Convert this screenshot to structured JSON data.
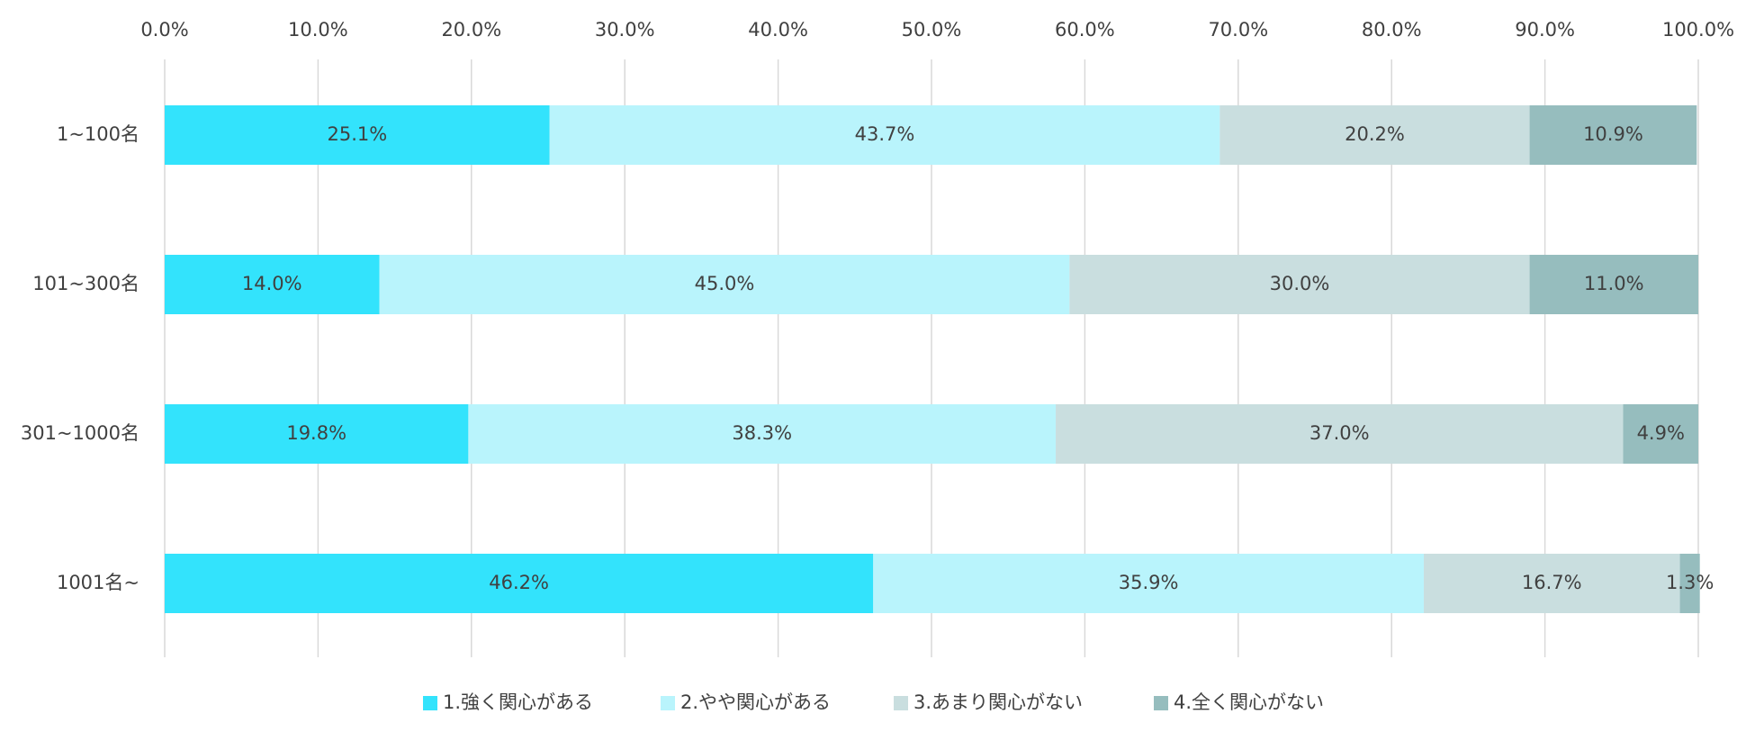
{
  "chart_data": {
    "type": "bar",
    "orientation": "horizontal",
    "stacked": true,
    "title": "",
    "xlabel": "",
    "ylabel": "",
    "xlim": [
      0,
      100
    ],
    "x_tick_values": [
      0,
      10,
      20,
      30,
      40,
      50,
      60,
      70,
      80,
      90,
      100
    ],
    "x_ticks": [
      "0.0%",
      "10.0%",
      "20.0%",
      "30.0%",
      "40.0%",
      "50.0%",
      "60.0%",
      "70.0%",
      "80.0%",
      "90.0%",
      "100.0%"
    ],
    "x_axis_position": "top",
    "grid": true,
    "legend_position": "bottom",
    "categories": [
      "1~100名",
      "101~300名",
      "301~1000名",
      "1001名~"
    ],
    "series": [
      {
        "name": "1.強く関心がある",
        "color": "#33E3FC",
        "values": [
          25.1,
          14.0,
          19.8,
          46.2
        ],
        "labels": [
          "25.1%",
          "14.0%",
          "19.8%",
          "46.2%"
        ]
      },
      {
        "name": "2.やや関心がある",
        "color": "#B9F4FC",
        "values": [
          43.7,
          45.0,
          38.3,
          35.9
        ],
        "labels": [
          "43.7%",
          "45.0%",
          "38.3%",
          "35.9%"
        ]
      },
      {
        "name": "3.あまり関心がない",
        "color": "#C9DEDF",
        "values": [
          20.2,
          30.0,
          37.0,
          16.7
        ],
        "labels": [
          "20.2%",
          "30.0%",
          "37.0%",
          "16.7%"
        ]
      },
      {
        "name": "4.全く関心がない",
        "color": "#96BDBE",
        "values": [
          10.9,
          11.0,
          4.9,
          1.3
        ],
        "labels": [
          "10.9%",
          "11.0%",
          "4.9%",
          "1.3%"
        ]
      }
    ]
  }
}
